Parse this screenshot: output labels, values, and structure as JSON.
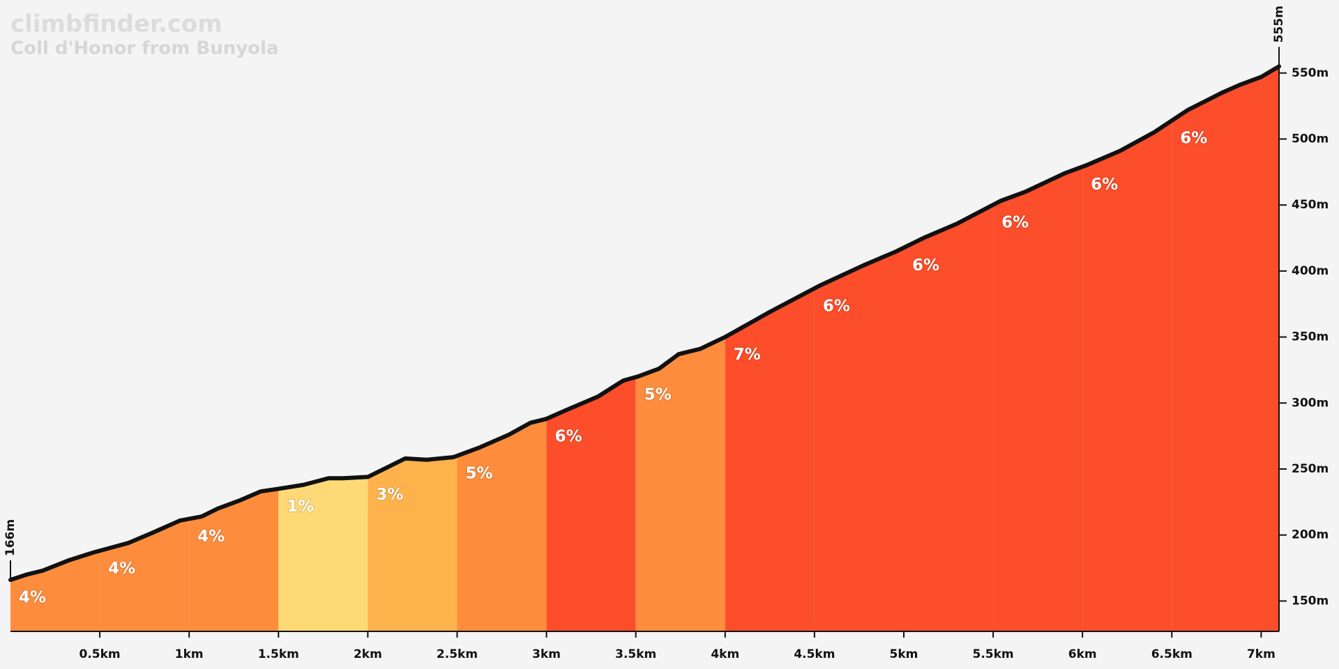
{
  "chart_data": {
    "type": "profile",
    "title": "climbfinder.com",
    "subtitle": "Coll d'Honor from Bunyola",
    "x": [
      0,
      0.09,
      0.18,
      0.33,
      0.47,
      0.66,
      0.8,
      0.95,
      1.07,
      1.16,
      1.28,
      1.4,
      1.5,
      1.64,
      1.78,
      1.86,
      2.0,
      2.09,
      2.21,
      2.33,
      2.48,
      2.62,
      2.79,
      2.91,
      3.0,
      3.1,
      3.29,
      3.43,
      3.51,
      3.63,
      3.74,
      3.86,
      4.0,
      4.25,
      4.53,
      4.77,
      4.96,
      5.11,
      5.3,
      5.54,
      5.68,
      5.9,
      6.02,
      6.21,
      6.4,
      6.59,
      6.78,
      6.88,
      7.0,
      7.1
    ],
    "values": [
      166,
      170,
      173,
      181,
      187,
      194,
      202,
      211,
      214,
      220,
      226,
      233,
      235,
      238,
      243,
      243,
      244,
      250,
      258,
      257,
      259,
      266,
      276,
      285,
      288,
      294,
      305,
      317,
      320,
      326,
      337,
      341,
      350,
      369,
      389,
      404,
      415,
      425,
      436,
      453,
      460,
      474,
      480,
      491,
      505,
      522,
      535,
      541,
      547,
      555
    ],
    "line_color": "#111111",
    "segments": {
      "bins": [
        0,
        0.5,
        1,
        1.5,
        2,
        2.5,
        3,
        3.5,
        4,
        4.5,
        5,
        5.5,
        6,
        6.5,
        7.1
      ],
      "gradients": [
        4,
        4,
        4,
        1,
        3,
        5,
        6,
        5,
        7,
        6,
        6,
        6,
        6,
        6
      ],
      "gradient_labels": [
        "4%",
        "4%",
        "4%",
        "1%",
        "3%",
        "5%",
        "6%",
        "5%",
        "7%",
        "6%",
        "6%",
        "6%",
        "6%",
        "6%"
      ],
      "colors": [
        "#fd8d3c",
        "#fd8d3c",
        "#fd8d3c",
        "#fed976",
        "#feb24c",
        "#fd8d3c",
        "#fc4e2a",
        "#fd8d3c",
        "#fc4e2a",
        "#fc4e2a",
        "#fc4e2a",
        "#fc4e2a",
        "#fc4e2a",
        "#fc4e2a"
      ]
    },
    "annotations": [
      {
        "x": 0,
        "y": 166,
        "label": "166m"
      },
      {
        "x": 7.1,
        "y": 555,
        "label": "555m"
      }
    ],
    "xlim": [
      0,
      7.1
    ],
    "ylim": [
      127,
      590
    ],
    "xticks": [
      {
        "value": 0.5,
        "label": "0.5km"
      },
      {
        "value": 1,
        "label": "1km"
      },
      {
        "value": 1.5,
        "label": "1.5km"
      },
      {
        "value": 2,
        "label": "2km"
      },
      {
        "value": 2.5,
        "label": "2.5km"
      },
      {
        "value": 3,
        "label": "3km"
      },
      {
        "value": 3.5,
        "label": "3.5km"
      },
      {
        "value": 4,
        "label": "4km"
      },
      {
        "value": 4.5,
        "label": "4.5km"
      },
      {
        "value": 5,
        "label": "5km"
      },
      {
        "value": 5.5,
        "label": "5.5km"
      },
      {
        "value": 6,
        "label": "6km"
      },
      {
        "value": 6.5,
        "label": "6.5km"
      },
      {
        "value": 7,
        "label": "7km"
      }
    ],
    "yticks": [
      {
        "value": 150,
        "label": "150m"
      },
      {
        "value": 200,
        "label": "200m"
      },
      {
        "value": 250,
        "label": "250m"
      },
      {
        "value": 300,
        "label": "300m"
      },
      {
        "value": 350,
        "label": "350m"
      },
      {
        "value": 400,
        "label": "400m"
      },
      {
        "value": 450,
        "label": "450m"
      },
      {
        "value": 500,
        "label": "500m"
      },
      {
        "value": 550,
        "label": "550m"
      }
    ]
  }
}
